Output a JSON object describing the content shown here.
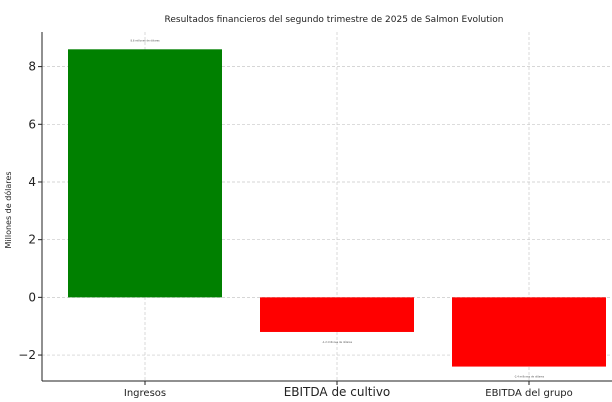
{
  "chart_data": {
    "type": "bar",
    "title": "Resultados financieros del segundo trimestre de 2025 de Salmon Evolution",
    "xlabel": "",
    "ylabel": "Millones de dólares",
    "categories": [
      "Ingresos",
      "EBITDA de cultivo",
      "EBITDA del grupo"
    ],
    "values": [
      8.6,
      -1.2,
      -2.4
    ],
    "data_labels": [
      "8.6 millones de dólares",
      "-1.2 millones de dólares",
      "-2.4 millones de dólares"
    ],
    "colors": [
      "#008000",
      "#ff0000",
      "#ff0000"
    ],
    "ylim": [
      -2.9,
      9.2
    ],
    "yticks": [
      -2,
      0,
      2,
      4,
      6,
      8
    ],
    "ytick_labels": [
      "−2",
      "0",
      "2",
      "4",
      "6",
      "8"
    ],
    "grid": true
  }
}
